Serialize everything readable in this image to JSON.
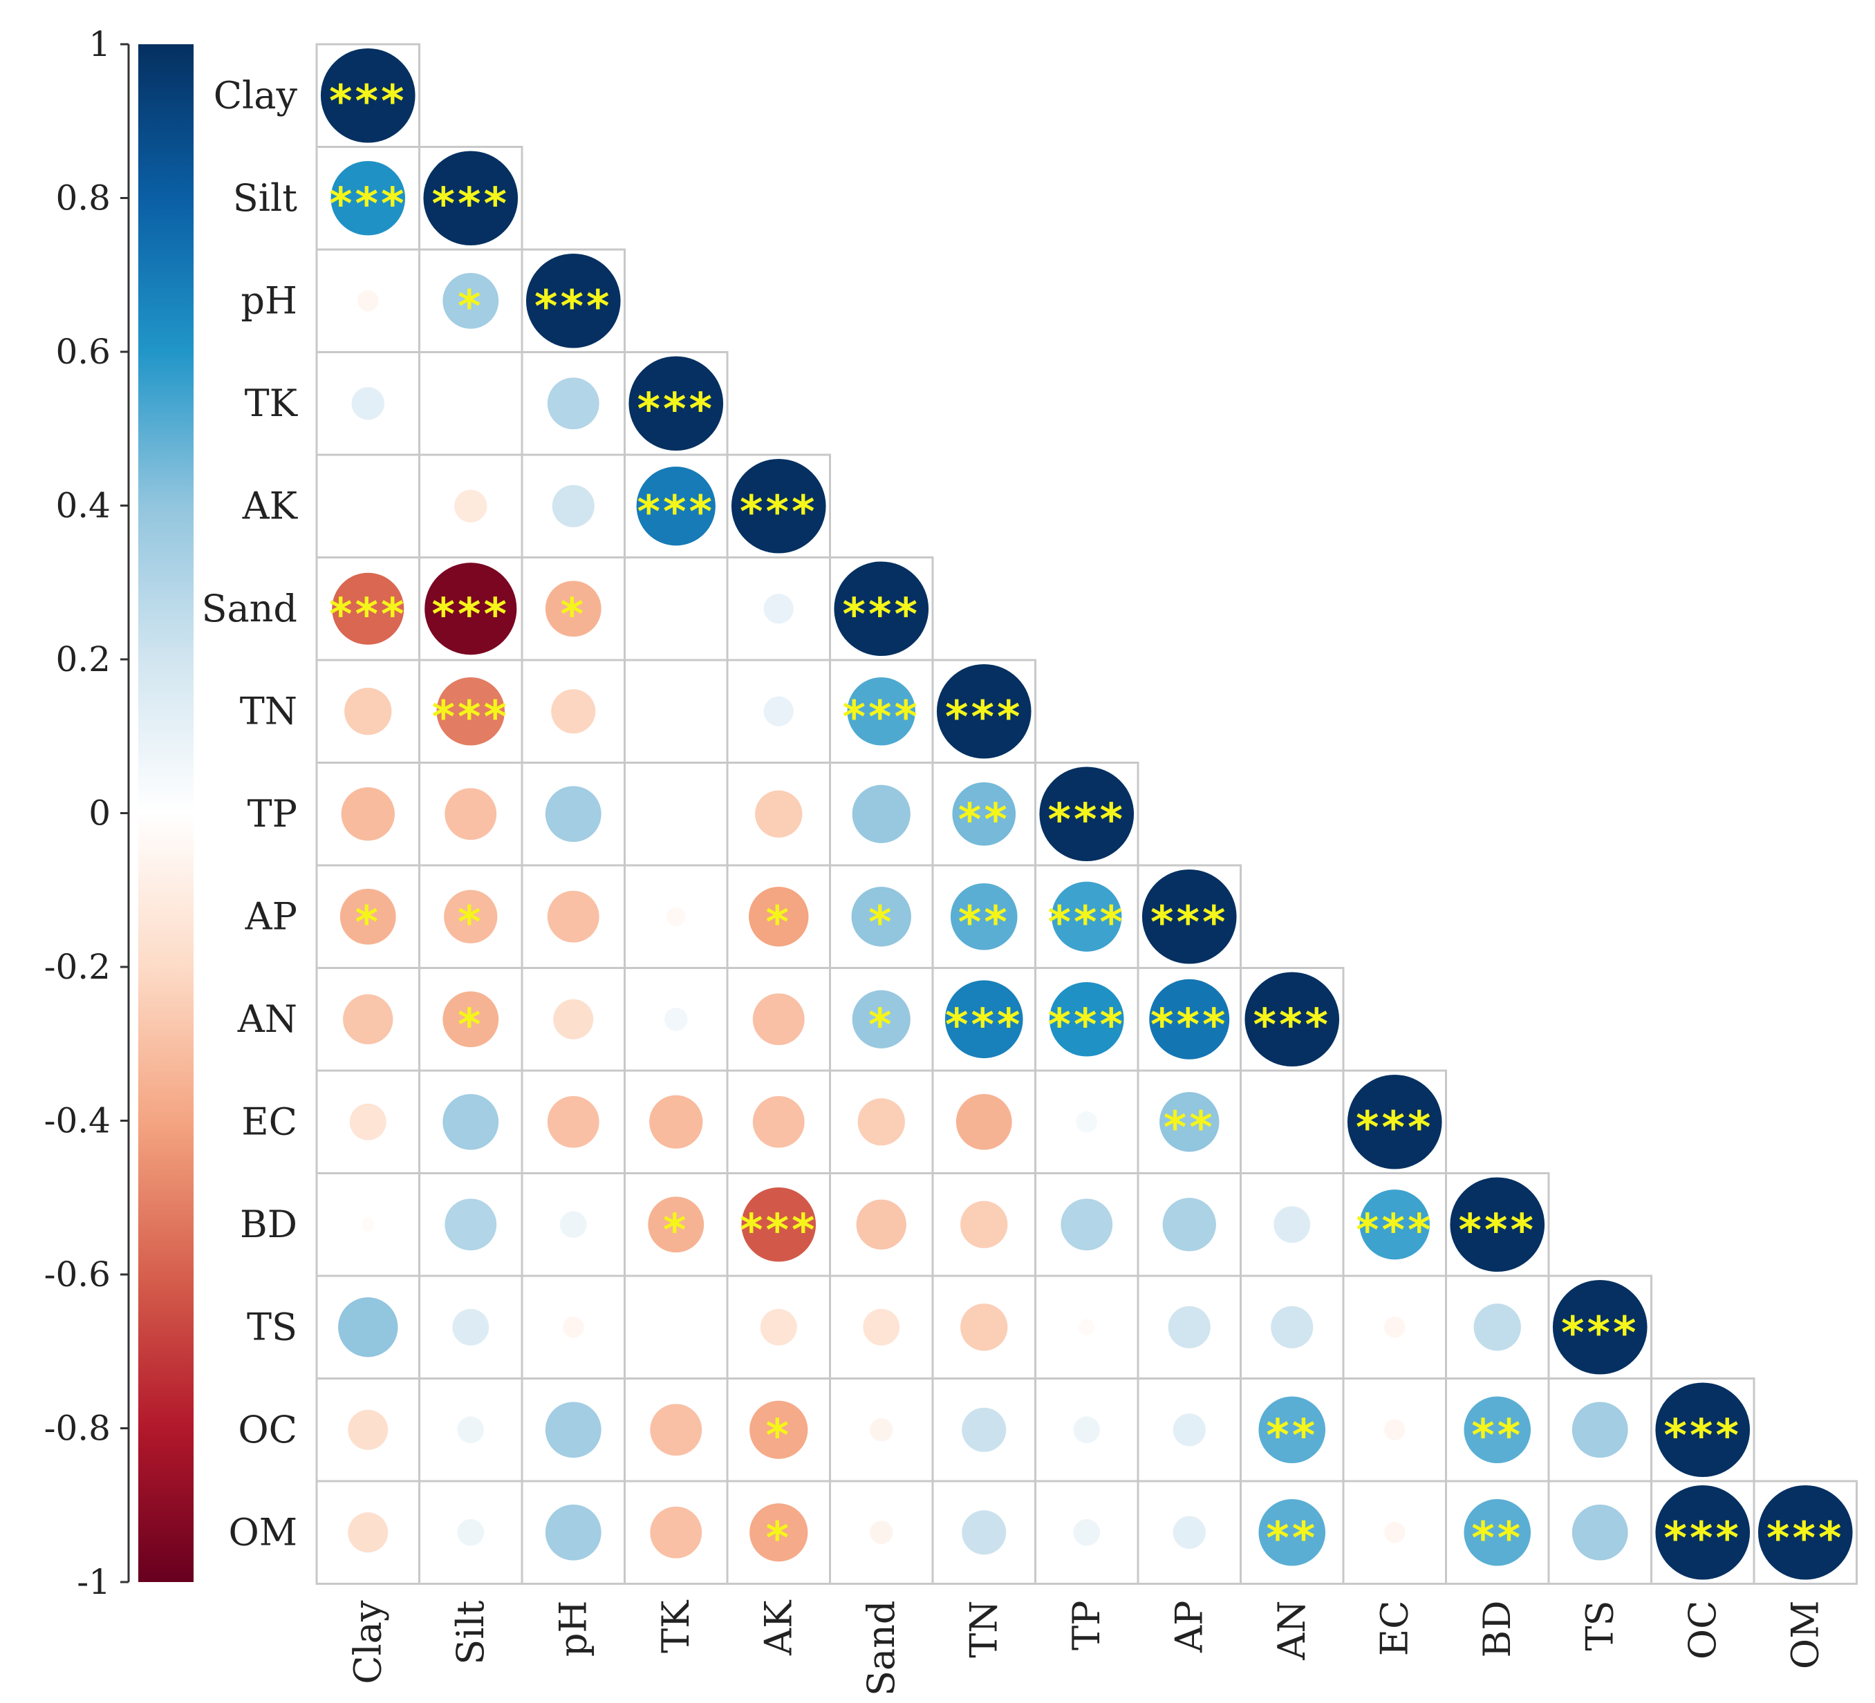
{
  "chart_data": {
    "type": "heatmap",
    "subtype": "correlation-matrix-lower-triangle-circles",
    "title": "",
    "variables": [
      "Clay",
      "Silt",
      "pH",
      "TK",
      "AK",
      "Sand",
      "TN",
      "TP",
      "AP",
      "AN",
      "EC",
      "BD",
      "TS",
      "OC",
      "OM"
    ],
    "colorbar": {
      "range": [
        -1,
        1
      ],
      "ticks": [
        1,
        0.8,
        0.6,
        0.4,
        0.2,
        0,
        -0.2,
        -0.4,
        -0.6,
        -0.8,
        -1
      ],
      "tick_labels": [
        "1",
        "0.8",
        "0.6",
        "0.4",
        "0.2",
        "0",
        "-0.2",
        "-0.4",
        "-0.6",
        "-0.8",
        "-1"
      ],
      "stops": [
        {
          "value": -1.0,
          "color": "#67001f"
        },
        {
          "value": -0.8,
          "color": "#b2182b"
        },
        {
          "value": -0.6,
          "color": "#d6604d"
        },
        {
          "value": -0.4,
          "color": "#f4a582"
        },
        {
          "value": -0.2,
          "color": "#fddbc7"
        },
        {
          "value": 0.0,
          "color": "#ffffff"
        },
        {
          "value": 0.2,
          "color": "#d1e5f0"
        },
        {
          "value": 0.4,
          "color": "#92c5de"
        },
        {
          "value": 0.6,
          "color": "#2196c8"
        },
        {
          "value": 0.8,
          "color": "#0b5fa5"
        },
        {
          "value": 1.0,
          "color": "#053061"
        }
      ]
    },
    "correlations": [
      [
        1
      ],
      [
        0.62,
        1
      ],
      [
        -0.05,
        0.35,
        1
      ],
      [
        0.12,
        0,
        0.3,
        1
      ],
      [
        0,
        -0.12,
        0.2,
        0.7,
        1
      ],
      [
        -0.58,
        -0.95,
        -0.35,
        0,
        0.1,
        1
      ],
      [
        -0.25,
        -0.52,
        -0.22,
        0,
        0.1,
        0.52,
        1
      ],
      [
        -0.32,
        -0.3,
        0.35,
        0,
        -0.25,
        0.38,
        0.45,
        1
      ],
      [
        -0.35,
        -0.32,
        -0.3,
        -0.04,
        -0.4,
        0.4,
        0.5,
        0.55,
        1
      ],
      [
        -0.28,
        -0.35,
        -0.18,
        0.06,
        -0.3,
        0.38,
        0.68,
        0.62,
        0.72,
        1
      ],
      [
        -0.15,
        0.35,
        -0.3,
        -0.32,
        -0.3,
        -0.25,
        -0.35,
        0.05,
        0.4,
        0,
        1
      ],
      [
        -0.02,
        0.3,
        0.08,
        -0.35,
        -0.62,
        -0.28,
        -0.25,
        0.3,
        0.32,
        0.15,
        0.55,
        1
      ],
      [
        0.4,
        0.15,
        -0.05,
        0,
        -0.15,
        -0.15,
        -0.25,
        -0.03,
        0.2,
        0.2,
        -0.05,
        0.25,
        1
      ],
      [
        -0.18,
        0.08,
        0.35,
        -0.3,
        -0.38,
        -0.06,
        0.22,
        0.08,
        0.12,
        0.5,
        -0.05,
        0.5,
        0.35,
        1
      ],
      [
        -0.18,
        0.08,
        0.35,
        -0.3,
        -0.38,
        -0.06,
        0.22,
        0.08,
        0.12,
        0.5,
        -0.05,
        0.5,
        0.35,
        1,
        1
      ]
    ],
    "significance": [
      [
        "***"
      ],
      [
        "***",
        "***"
      ],
      [
        "",
        "*",
        "***"
      ],
      [
        "",
        "",
        "",
        "***"
      ],
      [
        "",
        "",
        "",
        "***",
        "***"
      ],
      [
        "***",
        "***",
        "*",
        "",
        "",
        "***"
      ],
      [
        "",
        "***",
        "",
        "",
        "",
        "***",
        "***"
      ],
      [
        "",
        "",
        "",
        "",
        "",
        "",
        "**",
        "***"
      ],
      [
        "*",
        "*",
        "",
        "",
        "*",
        "*",
        "**",
        "***",
        "***"
      ],
      [
        "",
        "*",
        "",
        "",
        "",
        "*",
        "***",
        "***",
        "***",
        "***"
      ],
      [
        "",
        "",
        "",
        "",
        "",
        "",
        "",
        "",
        "**",
        "",
        "***"
      ],
      [
        "",
        "",
        "",
        "*",
        "***",
        "",
        "",
        "",
        "",
        "",
        "***",
        "***"
      ],
      [
        "",
        "",
        "",
        "",
        "",
        "",
        "",
        "",
        "",
        "",
        "",
        "",
        "***"
      ],
      [
        "",
        "",
        "",
        "",
        "*",
        "",
        "",
        "",
        "",
        "**",
        "",
        "**",
        "",
        "***"
      ],
      [
        "",
        "",
        "",
        "",
        "*",
        "",
        "",
        "",
        "",
        "**",
        "",
        "**",
        "",
        "***",
        "***"
      ]
    ]
  }
}
